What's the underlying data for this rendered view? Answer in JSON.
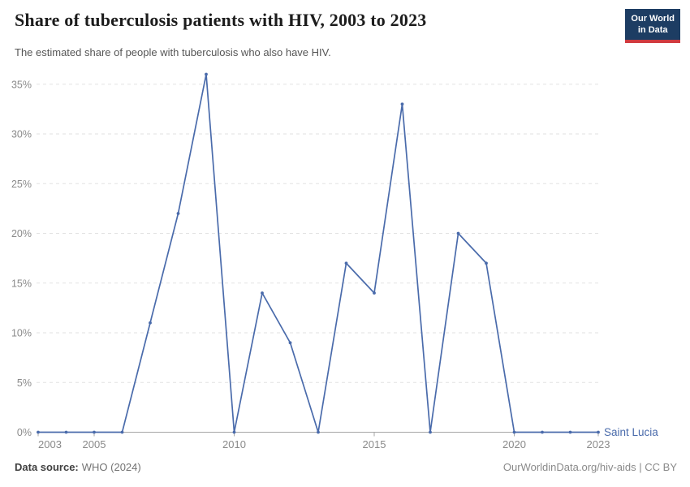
{
  "chart_data": {
    "type": "line",
    "title": "Share of tuberculosis patients with HIV, 2003 to 2023",
    "subtitle": "The estimated share of people with tuberculosis who also have HIV.",
    "x": [
      2003,
      2004,
      2005,
      2006,
      2007,
      2008,
      2009,
      2010,
      2011,
      2012,
      2013,
      2014,
      2015,
      2016,
      2017,
      2018,
      2019,
      2020,
      2021,
      2022,
      2023
    ],
    "series": [
      {
        "name": "Saint Lucia",
        "color": "#4a6bab",
        "values": [
          0,
          0,
          0,
          0,
          11,
          22,
          36,
          0,
          14,
          9,
          0,
          17,
          14,
          33,
          0,
          20,
          17,
          0,
          0,
          0,
          0
        ]
      }
    ],
    "x_ticks": [
      2003,
      2005,
      2010,
      2015,
      2020,
      2023
    ],
    "y_ticks": [
      0,
      5,
      10,
      15,
      20,
      25,
      30,
      35
    ],
    "y_tick_suffix": "%",
    "xlim": [
      2003,
      2023
    ],
    "ylim": [
      0,
      36
    ],
    "xlabel": "",
    "ylabel": "",
    "grid": "horizontal-dashed",
    "legend": "entity-label-right-of-line-end"
  },
  "logo": {
    "line1": "Our World",
    "line2": "in Data",
    "bg_color": "#1d3d63",
    "accent_color": "#d03a3f"
  },
  "footer": {
    "datasource_label": "Data source:",
    "datasource_value": "WHO (2024)",
    "credit": "OurWorldinData.org/hiv-aids | CC BY"
  }
}
